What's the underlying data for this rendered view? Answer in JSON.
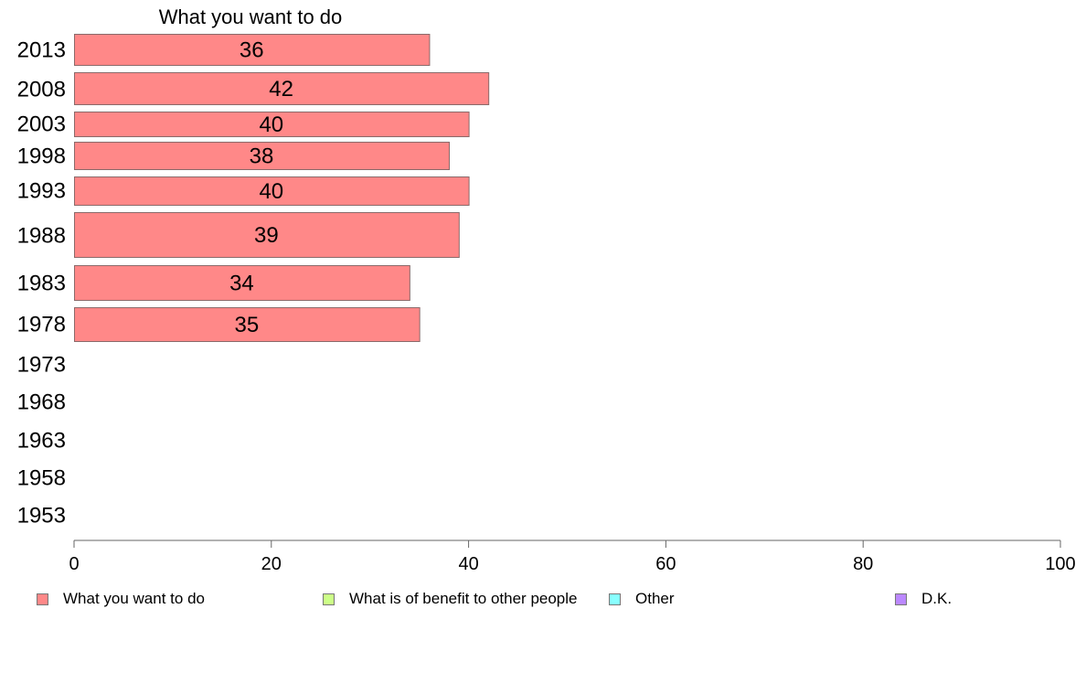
{
  "chart_data": {
    "type": "bar",
    "orientation": "horizontal",
    "title": "What you want to do",
    "categories": [
      "2013",
      "2008",
      "2003",
      "1998",
      "1993",
      "1988",
      "1983",
      "1978",
      "1973",
      "1968",
      "1963",
      "1958",
      "1953"
    ],
    "series": [
      {
        "name": "What you want to do",
        "color": "#ff8888",
        "values": [
          36,
          42,
          40,
          38,
          40,
          39,
          34,
          35,
          null,
          null,
          null,
          null,
          null
        ]
      }
    ],
    "xlim": [
      0,
      100
    ],
    "xticks": [
      0,
      20,
      40,
      60,
      80,
      100
    ],
    "grid": false,
    "legend_position": "bottom"
  },
  "legend": [
    {
      "label": "What you want to do",
      "color": "#ff8888"
    },
    {
      "label": "What is of benefit to other people",
      "color": "#ccff88"
    },
    {
      "label": "Other",
      "color": "#88ffff"
    },
    {
      "label": "D.K.",
      "color": "#bb88ff"
    }
  ]
}
